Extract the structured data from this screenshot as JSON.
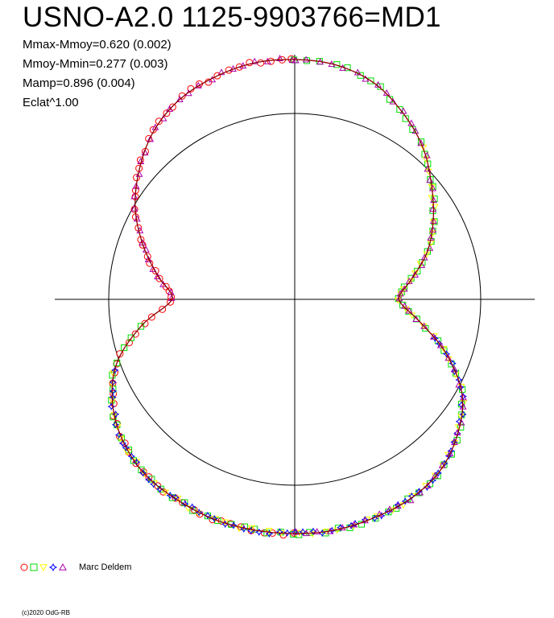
{
  "header": {
    "title": "USNO-A2.0 1125-9903766=MD1",
    "stats": [
      "Mmax-Mmoy=0.620 (0.002)",
      "Mmoy-Mmin=0.277 (0.003)",
      "Mamp=0.896 (0.004)",
      "Eclat^1.00"
    ]
  },
  "legend": {
    "author": "Marc Deldem",
    "series": [
      {
        "marker": "circle",
        "color": "#ff0000"
      },
      {
        "marker": "square",
        "color": "#00dd00"
      },
      {
        "marker": "triangle-down",
        "color": "#ffff00"
      },
      {
        "marker": "star",
        "color": "#0000ff"
      },
      {
        "marker": "triangle-up",
        "color": "#aa00aa"
      }
    ]
  },
  "copyright": "(c)2020 OdG-RB",
  "colors": {
    "background": "#ffffff",
    "axes": "#000000",
    "fit_curve": "#8b0000"
  },
  "chart_data": {
    "type": "polar-lightcurve",
    "radius_mode": "brightness ^ 1.00",
    "reference_circle_radius": 1.0,
    "fit_curve": {
      "angle_deg": [
        0,
        10,
        20,
        30,
        40,
        50,
        60,
        70,
        80,
        90,
        100,
        110,
        120,
        130,
        140,
        150,
        160,
        170,
        180,
        190,
        200,
        210,
        220,
        230,
        240,
        250,
        260,
        270,
        280,
        290,
        300,
        310,
        320,
        330,
        340,
        350
      ],
      "radius": [
        1.29,
        1.28,
        1.24,
        1.16,
        1.07,
        0.96,
        0.86,
        0.76,
        0.64,
        0.56,
        0.68,
        0.87,
        1.04,
        1.14,
        1.21,
        1.24,
        1.25,
        1.26,
        1.26,
        1.26,
        1.26,
        1.25,
        1.24,
        1.2,
        1.13,
        1.02,
        0.84,
        0.66,
        0.75,
        0.87,
        0.99,
        1.09,
        1.18,
        1.24,
        1.27,
        1.29
      ]
    },
    "series": [
      {
        "marker": "circle",
        "color": "#ff0000",
        "angle_deg_ranges": [
          [
            180,
            360
          ]
        ]
      },
      {
        "marker": "square",
        "color": "#00dd00",
        "angle_deg_ranges": [
          [
            0,
            180
          ],
          [
            180,
            260
          ]
        ]
      },
      {
        "marker": "triangle-down",
        "color": "#ffff00",
        "angle_deg_ranges": [
          [
            40,
            180
          ],
          [
            180,
            250
          ]
        ]
      },
      {
        "marker": "star",
        "color": "#0000ff",
        "angle_deg_ranges": [
          [
            105,
            250
          ]
        ]
      },
      {
        "marker": "triangle-up",
        "color": "#aa00aa",
        "angle_deg_ranges": [
          [
            0,
            180
          ],
          [
            270,
            360
          ]
        ]
      }
    ]
  }
}
